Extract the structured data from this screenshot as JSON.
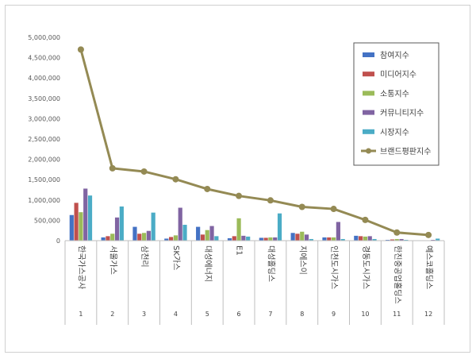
{
  "chart_data": {
    "type": "bar",
    "ylim": [
      0,
      5000000
    ],
    "y_ticks": [
      0,
      500000,
      1000000,
      1500000,
      2000000,
      2500000,
      3000000,
      3500000,
      4000000,
      4500000,
      5000000
    ],
    "y_tick_labels": [
      "0",
      "500,000",
      "1,000,000",
      "1,500,000",
      "2,000,000",
      "2,500,000",
      "3,000,000",
      "3,500,000",
      "4,000,000",
      "4,500,000",
      "5,000,000"
    ],
    "grid": false,
    "legend_position": "top-right",
    "categories": [
      "한국가스공사",
      "서울가스",
      "삼천리",
      "SK가스",
      "대성에너지",
      "E1",
      "대성홀딩스",
      "지에스이",
      "인천도시가스",
      "경동도시가스",
      "한진중공업홀딩스",
      "예스코홀딩스"
    ],
    "category_numbers": [
      "1",
      "2",
      "3",
      "4",
      "5",
      "6",
      "7",
      "8",
      "9",
      "10",
      "11",
      "12"
    ],
    "series": [
      {
        "name": "참여지수",
        "kind": "bar",
        "color": "#4472C4",
        "values": [
          630000,
          80000,
          340000,
          50000,
          340000,
          60000,
          70000,
          190000,
          80000,
          120000,
          20000,
          10000
        ]
      },
      {
        "name": "미디어지수",
        "kind": "bar",
        "color": "#C0504D",
        "values": [
          930000,
          110000,
          170000,
          90000,
          150000,
          110000,
          70000,
          170000,
          80000,
          110000,
          30000,
          10000
        ]
      },
      {
        "name": "소통지수",
        "kind": "bar",
        "color": "#9BBB59",
        "values": [
          700000,
          170000,
          190000,
          130000,
          260000,
          550000,
          80000,
          220000,
          80000,
          100000,
          40000,
          10000
        ]
      },
      {
        "name": "커뮤니티지수",
        "kind": "bar",
        "color": "#8064A2",
        "values": [
          1280000,
          570000,
          240000,
          810000,
          360000,
          120000,
          80000,
          150000,
          460000,
          110000,
          40000,
          20000
        ]
      },
      {
        "name": "시장지수",
        "kind": "bar",
        "color": "#4BACC6",
        "values": [
          1110000,
          840000,
          690000,
          390000,
          110000,
          100000,
          670000,
          40000,
          40000,
          40000,
          20000,
          50000
        ]
      },
      {
        "name": "브랜드평판지수",
        "kind": "line",
        "color": "#948A54",
        "values": [
          4700000,
          1780000,
          1700000,
          1510000,
          1270000,
          1100000,
          990000,
          830000,
          780000,
          510000,
          200000,
          140000
        ]
      }
    ]
  }
}
